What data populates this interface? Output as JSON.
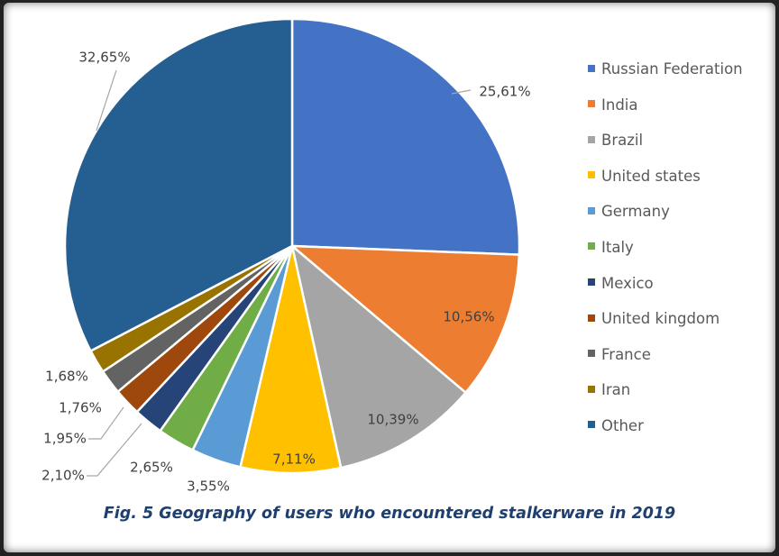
{
  "chart_data": {
    "type": "pie",
    "categories": [
      "Russian Federation",
      "India",
      "Brazil",
      "United states",
      "Germany",
      "Italy",
      "Mexico",
      "United kingdom",
      "France",
      "Iran",
      "Other"
    ],
    "values": [
      25.61,
      10.56,
      10.39,
      7.11,
      3.55,
      2.65,
      2.1,
      1.95,
      1.76,
      1.68,
      32.65
    ],
    "value_labels": [
      "25,61%",
      "10,56%",
      "10,39%",
      "7,11%",
      "3,55%",
      "2,65%",
      "2,10%",
      "1,95%",
      "1,76%",
      "1,68%",
      "32,65%"
    ],
    "colors": [
      "#4472c4",
      "#ed7d31",
      "#a5a5a5",
      "#ffc000",
      "#5b9bd5",
      "#70ad47",
      "#264478",
      "#9e480e",
      "#636363",
      "#997300",
      "#255e91"
    ],
    "legend_position": "right",
    "start_angle": "12 o'clock",
    "direction": "clockwise"
  },
  "caption": "Fig. 5 Geography of users who encountered stalkerware in 2019"
}
